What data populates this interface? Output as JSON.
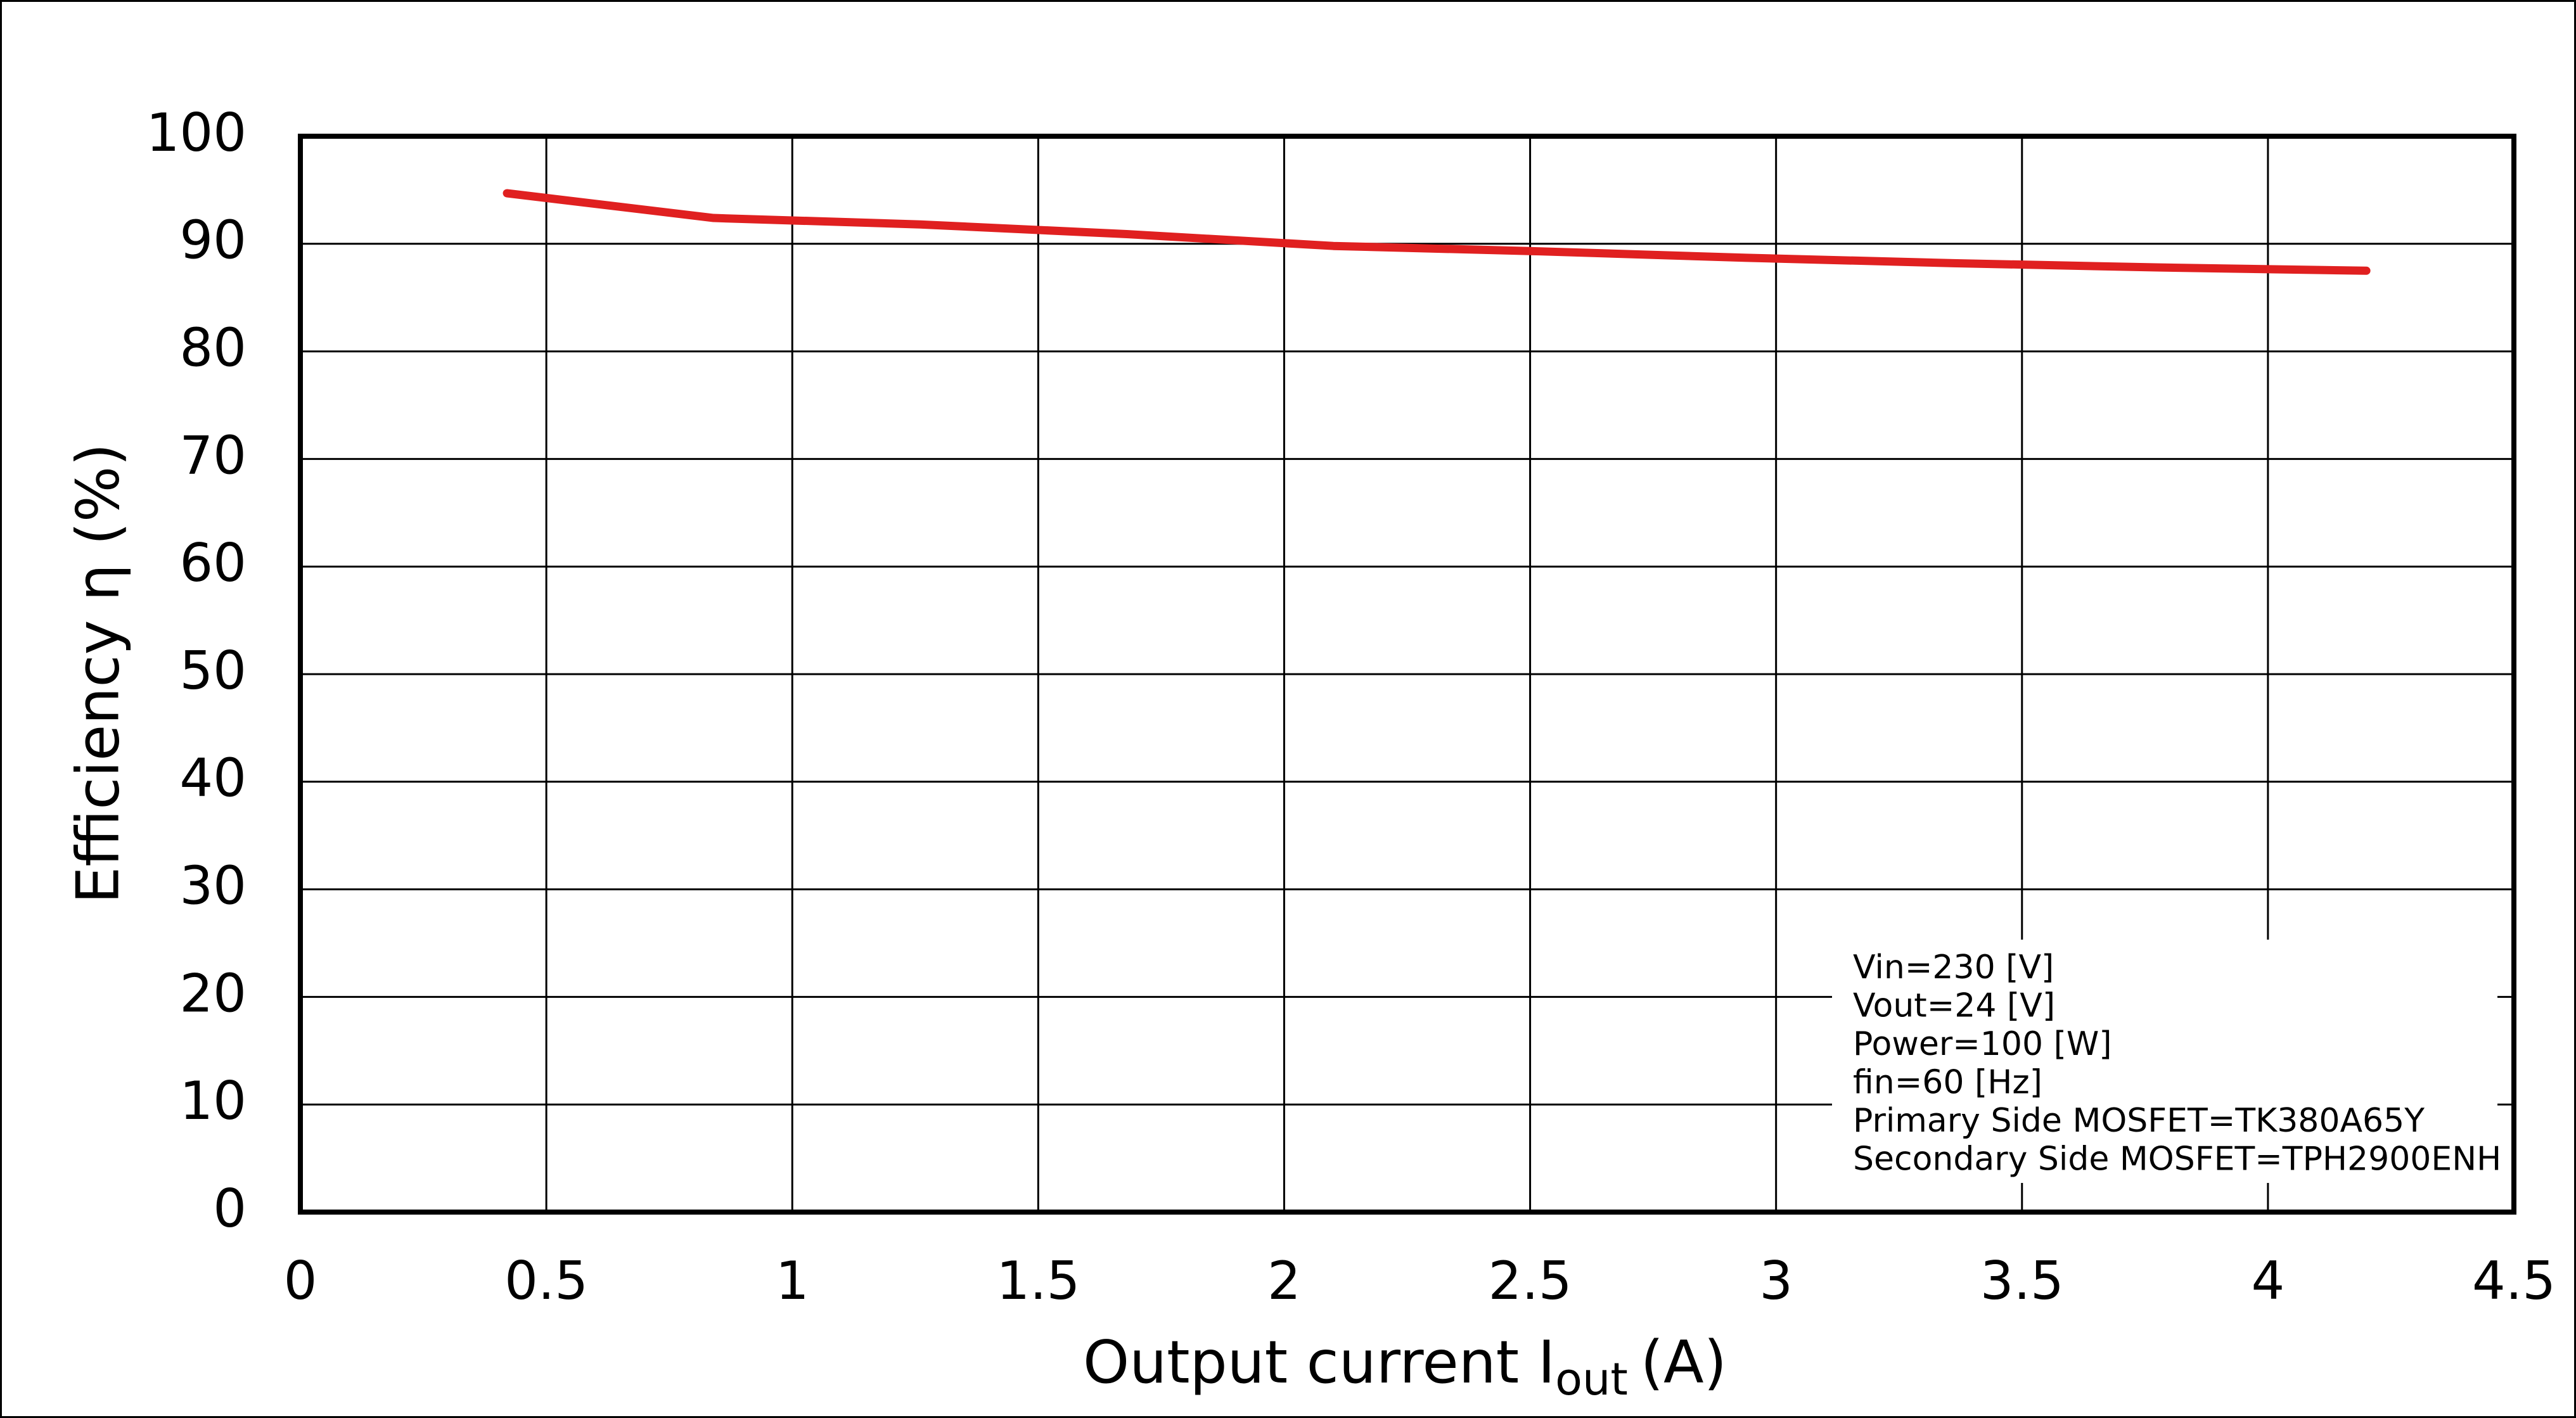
{
  "chart_data": {
    "type": "line",
    "y_label": "Efficiency  η (%)",
    "x_label": {
      "text": "Output current  I",
      "subscript": "out",
      "unit": "(A)"
    },
    "x": [
      0.42,
      0.84,
      1.26,
      1.68,
      2.1,
      2.52,
      2.94,
      3.36,
      3.78,
      4.2
    ],
    "series": [
      {
        "color": "#e02020",
        "values": [
          94.7,
          92.4,
          91.8,
          90.9,
          89.8,
          89.3,
          88.7,
          88.2,
          87.8,
          87.5
        ]
      }
    ],
    "xlim": [
      0,
      4.5
    ],
    "xticks": [
      0,
      0.5,
      1,
      1.5,
      2,
      2.5,
      3,
      3.5,
      4,
      4.5
    ],
    "ylim": [
      0,
      100
    ],
    "yticks": [
      0,
      10,
      20,
      30,
      40,
      50,
      60,
      70,
      80,
      90,
      100
    ],
    "grid": true,
    "annotation": [
      "Vin=230 [V]",
      "Vout=24 [V]",
      "Power=100 [W]",
      "fin=60 [Hz]",
      "Primary Side MOSFET=TK380A65Y",
      "Secondary Side MOSFET=TPH2900ENH"
    ]
  }
}
